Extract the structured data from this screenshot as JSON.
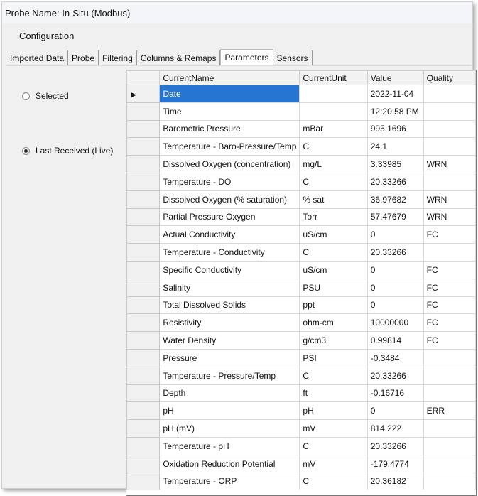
{
  "window": {
    "title": "Probe Name: In-Situ (Modbus)"
  },
  "menu": {
    "configuration": "Configuration"
  },
  "tabs": [
    {
      "label": "Imported Data"
    },
    {
      "label": "Probe"
    },
    {
      "label": "Filtering"
    },
    {
      "label": "Columns & Remaps"
    },
    {
      "label": "Parameters",
      "active": true
    },
    {
      "label": "Sensors"
    }
  ],
  "mode": {
    "selected": "Selected",
    "live": "Last Received (Live)",
    "checked": "live"
  },
  "grid": {
    "columns": [
      "CurrentName",
      "CurrentUnit",
      "Value",
      "Quality"
    ],
    "selected_row": 0,
    "selection_color": "#2675d2",
    "rows": [
      [
        "Date",
        "",
        "2022-11-04",
        ""
      ],
      [
        "Time",
        "",
        "12:20:58 PM",
        ""
      ],
      [
        "Barometric Pressure",
        "mBar",
        "995.1696",
        ""
      ],
      [
        "Temperature - Baro-Pressure/Temp",
        "C",
        "24.1",
        ""
      ],
      [
        "Dissolved Oxygen (concentration)",
        "mg/L",
        "3.33985",
        "WRN"
      ],
      [
        "Temperature - DO",
        "C",
        "20.33266",
        ""
      ],
      [
        "Dissolved Oxygen (% saturation)",
        "% sat",
        "36.97682",
        "WRN"
      ],
      [
        "Partial Pressure Oxygen",
        "Torr",
        "57.47679",
        "WRN"
      ],
      [
        "Actual Conductivity",
        "uS/cm",
        "0",
        "FC"
      ],
      [
        "Temperature - Conductivity",
        "C",
        "20.33266",
        ""
      ],
      [
        "Specific Conductivity",
        "uS/cm",
        "0",
        "FC"
      ],
      [
        "Salinity",
        "PSU",
        "0",
        "FC"
      ],
      [
        "Total Dissolved Solids",
        "ppt",
        "0",
        "FC"
      ],
      [
        "Resistivity",
        "ohm-cm",
        "10000000",
        "FC"
      ],
      [
        "Water Density",
        "g/cm3",
        "0.99814",
        "FC"
      ],
      [
        "Pressure",
        "PSI",
        "-0.3484",
        ""
      ],
      [
        "Temperature - Pressure/Temp",
        "C",
        "20.33266",
        ""
      ],
      [
        "Depth",
        "ft",
        "-0.16716",
        ""
      ],
      [
        "pH",
        "pH",
        "0",
        "ERR"
      ],
      [
        "pH (mV)",
        "mV",
        "814.222",
        ""
      ],
      [
        "Temperature - pH",
        "C",
        "20.33266",
        ""
      ],
      [
        "Oxidation Reduction Potential",
        "mV",
        "-179.4774",
        ""
      ],
      [
        "Temperature - ORP",
        "C",
        "20.36182",
        ""
      ]
    ]
  }
}
